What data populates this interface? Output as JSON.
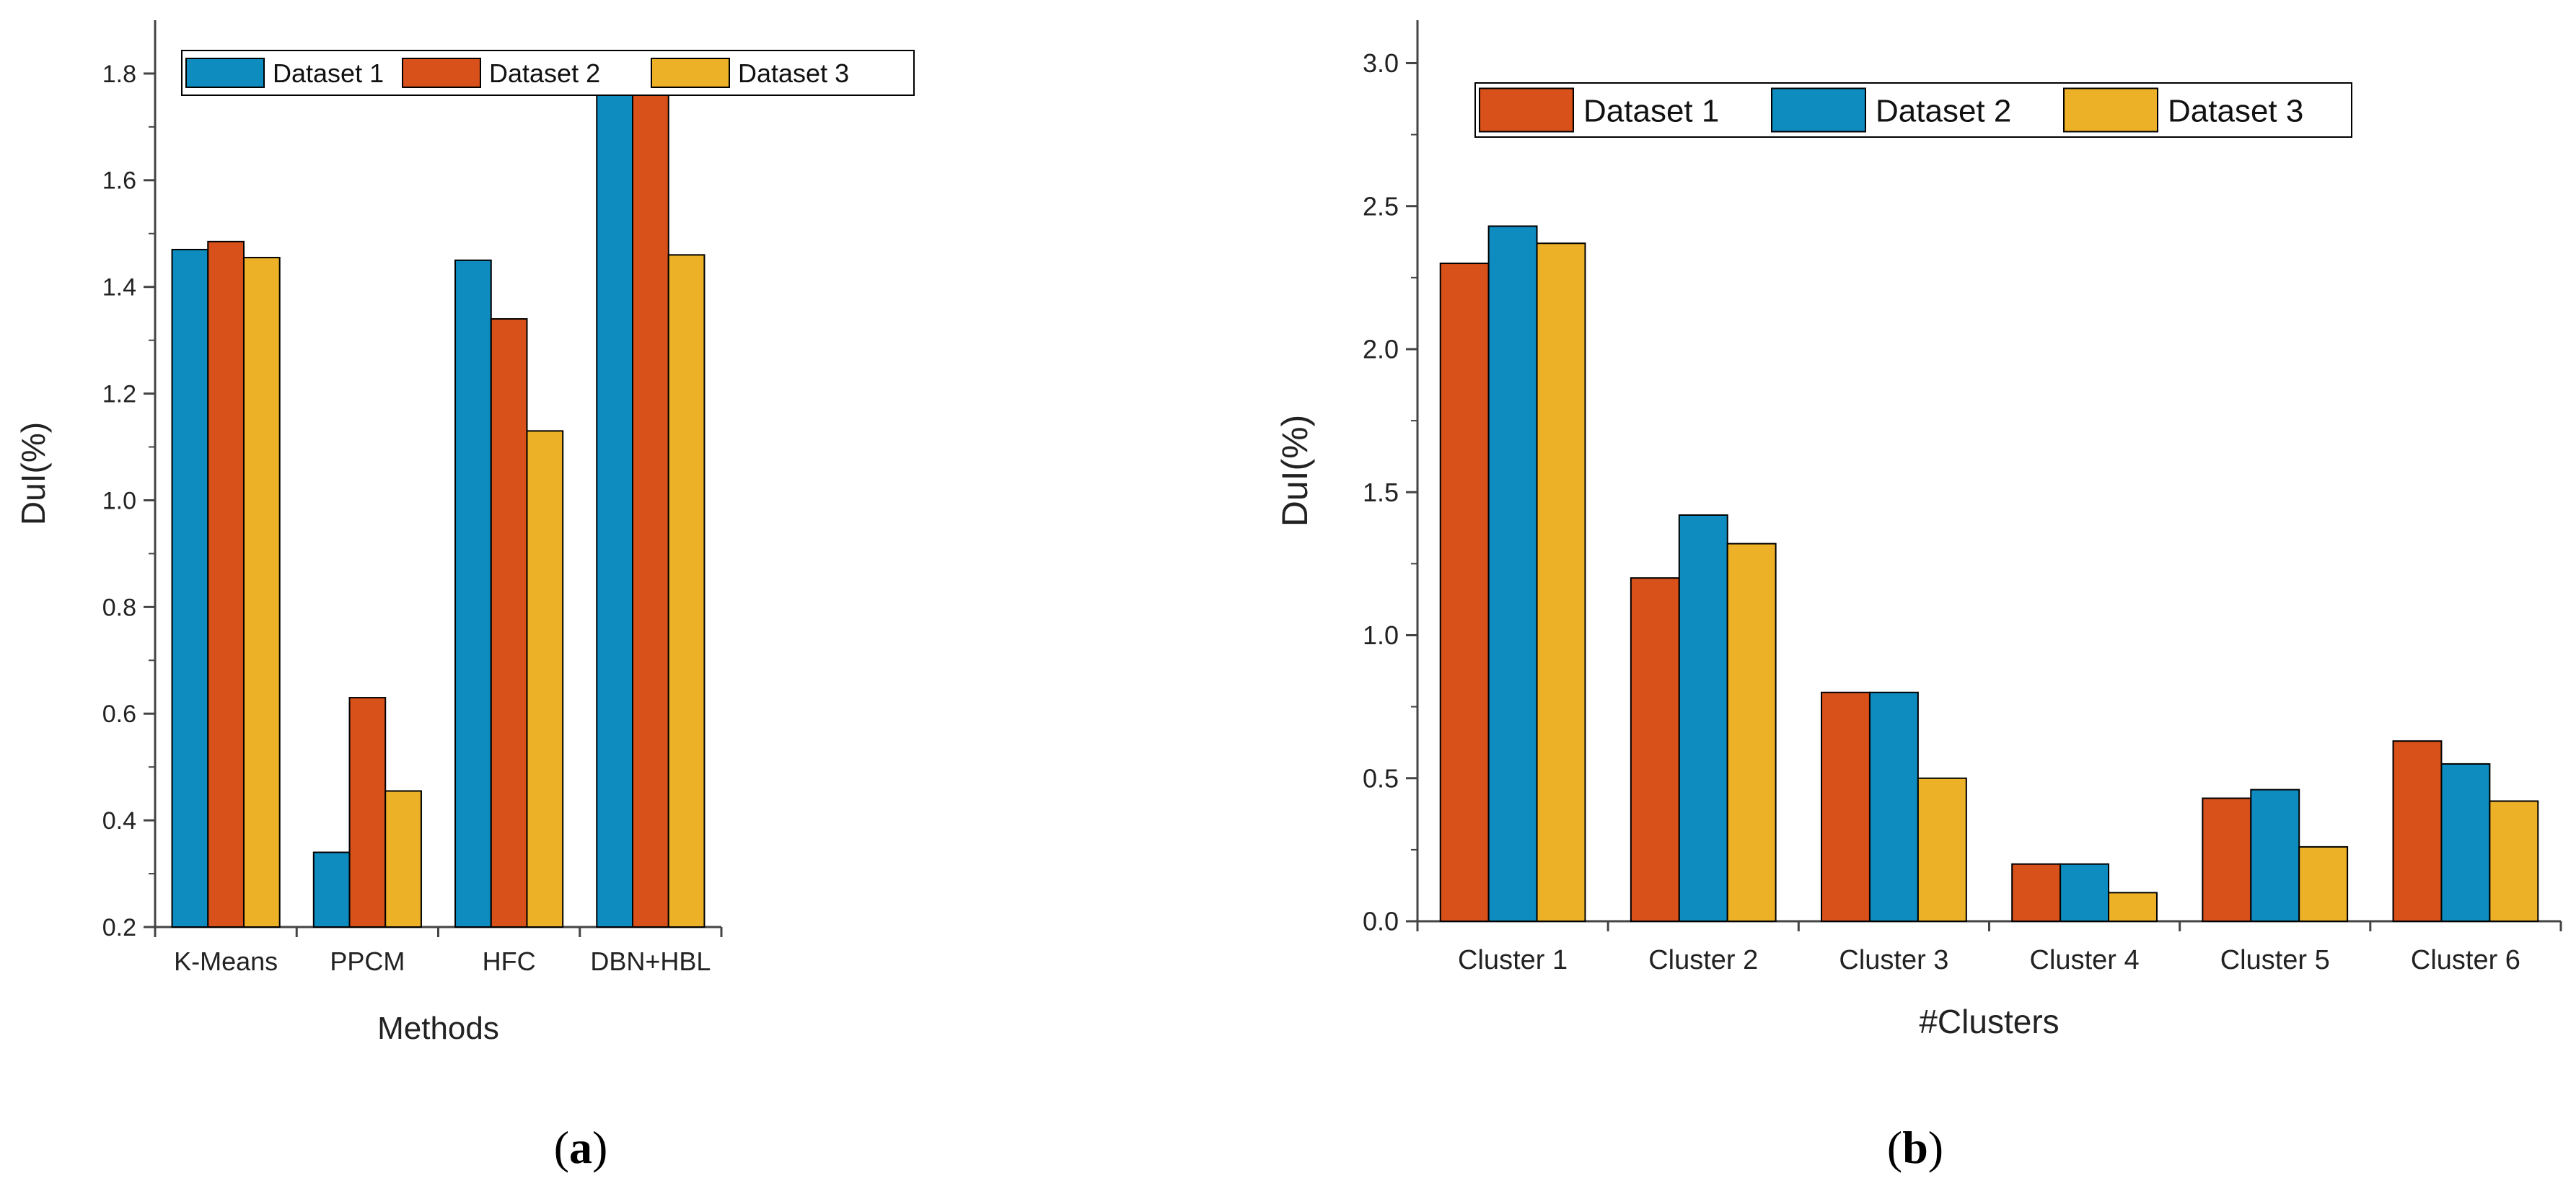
{
  "colors": {
    "blue": "#0E8CC0",
    "orange": "#D8511A",
    "yellow": "#EDB127",
    "axis": "#444444"
  },
  "chart_data": [
    {
      "id": "a",
      "type": "bar",
      "subfigure_label": "(a)",
      "subfigure_letter": "a",
      "title": "",
      "xlabel": "Methods",
      "ylabel": "DuI(%)",
      "ylim": [
        0.2,
        1.9
      ],
      "yticks": [
        0.2,
        0.4,
        0.6,
        0.8,
        1.0,
        1.2,
        1.4,
        1.6,
        1.8
      ],
      "ytick_labels": [
        "0.2",
        "0.4",
        "0.6",
        "0.8",
        "1.0",
        "1.2",
        "1.4",
        "1.6",
        "1.8"
      ],
      "legend_position": "top",
      "categories": [
        "K-Means",
        "PPCM",
        "HFC",
        "DBN+HBL"
      ],
      "series": [
        {
          "name": "Dataset 1",
          "color": "#0E8CC0",
          "values": [
            1.47,
            0.34,
            1.45,
            1.76
          ]
        },
        {
          "name": "Dataset 2",
          "color": "#D8511A",
          "values": [
            1.485,
            0.63,
            1.34,
            1.785
          ]
        },
        {
          "name": "Dataset 3",
          "color": "#EDB127",
          "values": [
            1.455,
            0.455,
            1.13,
            1.46
          ]
        }
      ]
    },
    {
      "id": "b",
      "type": "bar",
      "subfigure_label": "(b)",
      "subfigure_letter": "b",
      "title": "",
      "xlabel": "#Clusters",
      "ylabel": "DuI(%)",
      "ylim": [
        0.0,
        3.15
      ],
      "yticks": [
        0.0,
        0.5,
        1.0,
        1.5,
        2.0,
        2.5,
        3.0
      ],
      "ytick_labels": [
        "0.0",
        "0.5",
        "1.0",
        "1.5",
        "2.0",
        "2.5",
        "3.0"
      ],
      "legend_position": "top",
      "categories": [
        "Cluster 1",
        "Cluster 2",
        "Cluster 3",
        "Cluster 4",
        "Cluster 5",
        "Cluster 6"
      ],
      "series": [
        {
          "name": "Dataset 1",
          "color": "#D8511A",
          "values": [
            2.3,
            1.2,
            0.8,
            0.2,
            0.43,
            0.63
          ]
        },
        {
          "name": "Dataset 2",
          "color": "#0E8CC0",
          "values": [
            2.43,
            1.42,
            0.8,
            0.2,
            0.46,
            0.55
          ]
        },
        {
          "name": "Dataset 3",
          "color": "#EDB127",
          "values": [
            2.37,
            1.32,
            0.5,
            0.1,
            0.26,
            0.42
          ]
        }
      ]
    }
  ]
}
